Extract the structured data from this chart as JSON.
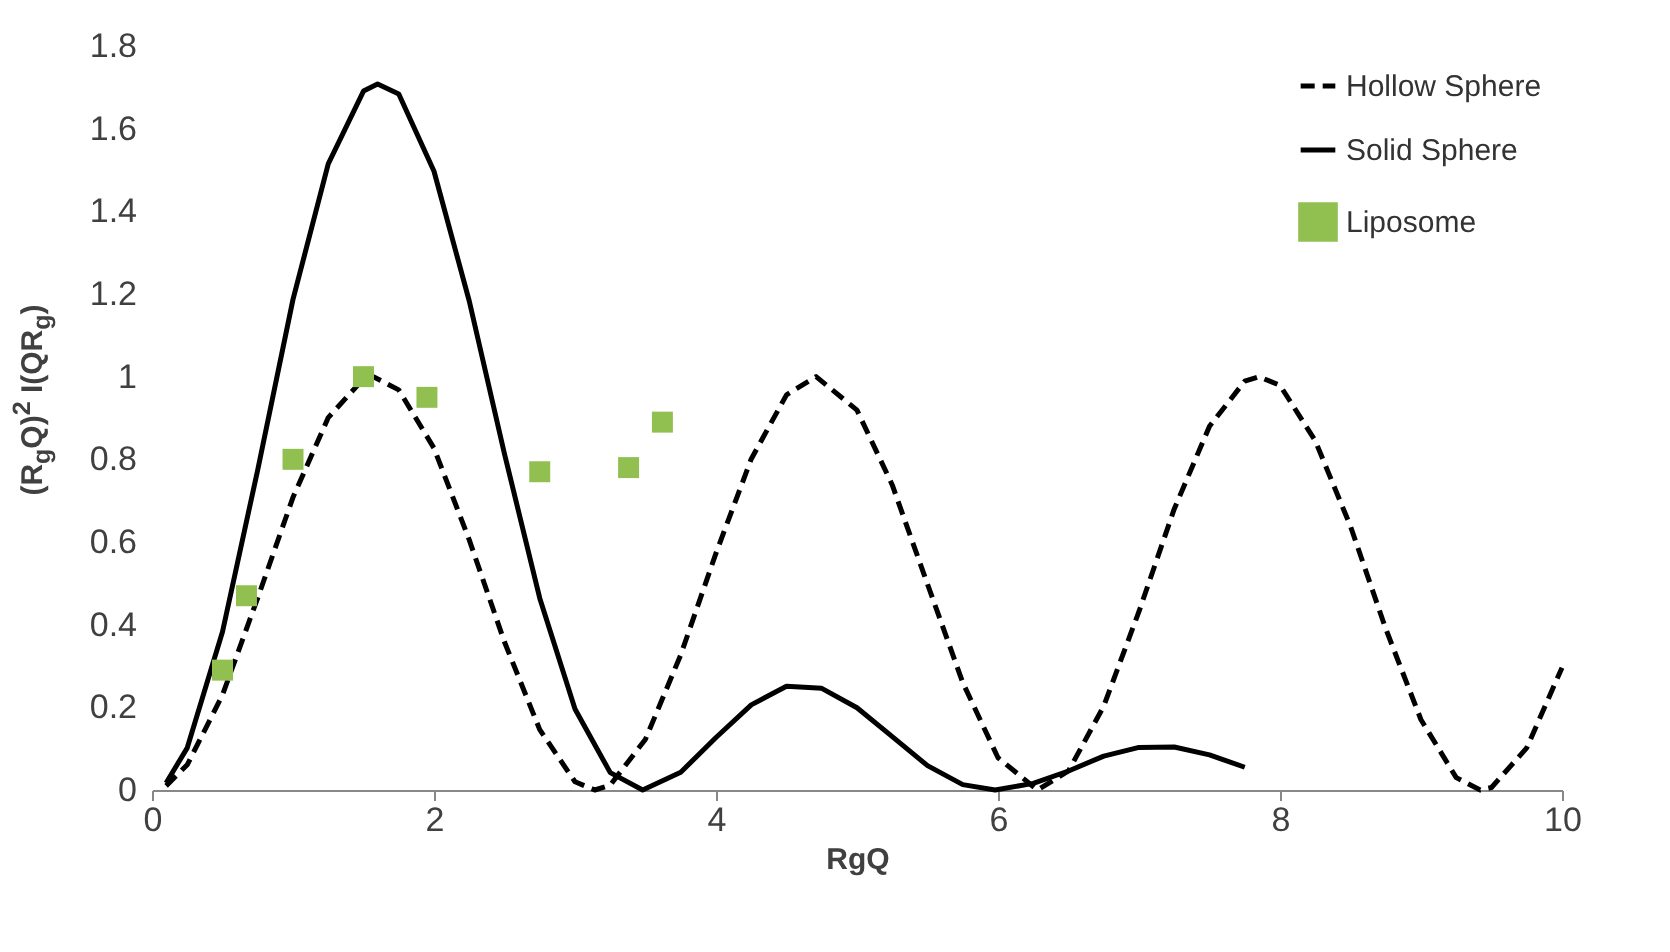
{
  "chart_data": {
    "type": "line",
    "xlabel": "RgQ",
    "ylabel": "(R$_{g}$Q)$^{2}$ I(QR$_{g}$)",
    "xlim": [
      0,
      10
    ],
    "xticks": [
      0,
      2,
      4,
      6,
      8,
      10
    ],
    "ylim": [
      0,
      1.8
    ],
    "yticks": [
      0,
      0.2,
      0.4,
      0.6,
      0.8,
      1,
      1.2,
      1.4,
      1.6,
      1.8
    ],
    "grid": false,
    "legend": "top right",
    "series": [
      {
        "name": "Hollow Sphere",
        "line_style": "dashed",
        "marker": "none",
        "color": "#000000",
        "x": [
          0.1,
          0.25,
          0.5,
          0.75,
          1,
          1.25,
          1.5,
          1.57,
          1.75,
          2,
          2.25,
          2.5,
          2.75,
          3,
          3.14,
          3.25,
          3.5,
          3.75,
          4,
          4.25,
          4.5,
          4.71,
          5,
          5.25,
          5.5,
          5.75,
          6,
          6.28,
          6.5,
          6.75,
          7,
          7.25,
          7.5,
          7.75,
          7.85,
          8,
          8.25,
          8.5,
          8.75,
          9,
          9.25,
          9.42,
          9.5,
          9.75,
          10
        ],
        "values": [
          0.01,
          0.061,
          0.23,
          0.465,
          0.708,
          0.901,
          0.995,
          1,
          0.968,
          0.827,
          0.605,
          0.358,
          0.146,
          0.02,
          0,
          0.012,
          0.123,
          0.327,
          0.573,
          0.801,
          0.956,
          1,
          0.919,
          0.738,
          0.498,
          0.26,
          0.078,
          0,
          0.046,
          0.203,
          0.432,
          0.68,
          0.88,
          0.989,
          1,
          0.979,
          0.845,
          0.638,
          0.39,
          0.17,
          0.03,
          0,
          0.006,
          0.102,
          0.296
        ]
      },
      {
        "name": "Solid Sphere",
        "line_style": "solid",
        "marker": "none",
        "color": "#000000",
        "x": [
          0.1,
          0.25,
          0.5,
          0.75,
          1,
          1.25,
          1.5,
          1.6,
          1.75,
          2,
          2.25,
          2.5,
          2.75,
          3,
          3.25,
          3.48,
          3.75,
          4,
          4.25,
          4.5,
          4.75,
          5,
          5.25,
          5.5,
          5.75,
          5.98,
          6.25,
          6.5,
          6.75,
          7,
          7.25,
          7.5,
          7.75
        ],
        "values": [
          0.017,
          0.102,
          0.383,
          0.775,
          1.187,
          1.515,
          1.691,
          1.708,
          1.684,
          1.497,
          1.183,
          0.813,
          0.464,
          0.196,
          0.042,
          0,
          0.043,
          0.127,
          0.206,
          0.251,
          0.246,
          0.199,
          0.129,
          0.059,
          0.013,
          0,
          0.016,
          0.046,
          0.082,
          0.103,
          0.104,
          0.085,
          0.055
        ]
      },
      {
        "name": "Liposome",
        "type": "scatter",
        "marker": "square",
        "color": "#92c050",
        "x": [
          0.5,
          0.67,
          1.0,
          1.5,
          1.95,
          2.75,
          3.38,
          3.62
        ],
        "values": [
          0.29,
          0.47,
          0.8,
          1.0,
          0.95,
          0.77,
          0.78,
          0.89
        ]
      }
    ]
  }
}
